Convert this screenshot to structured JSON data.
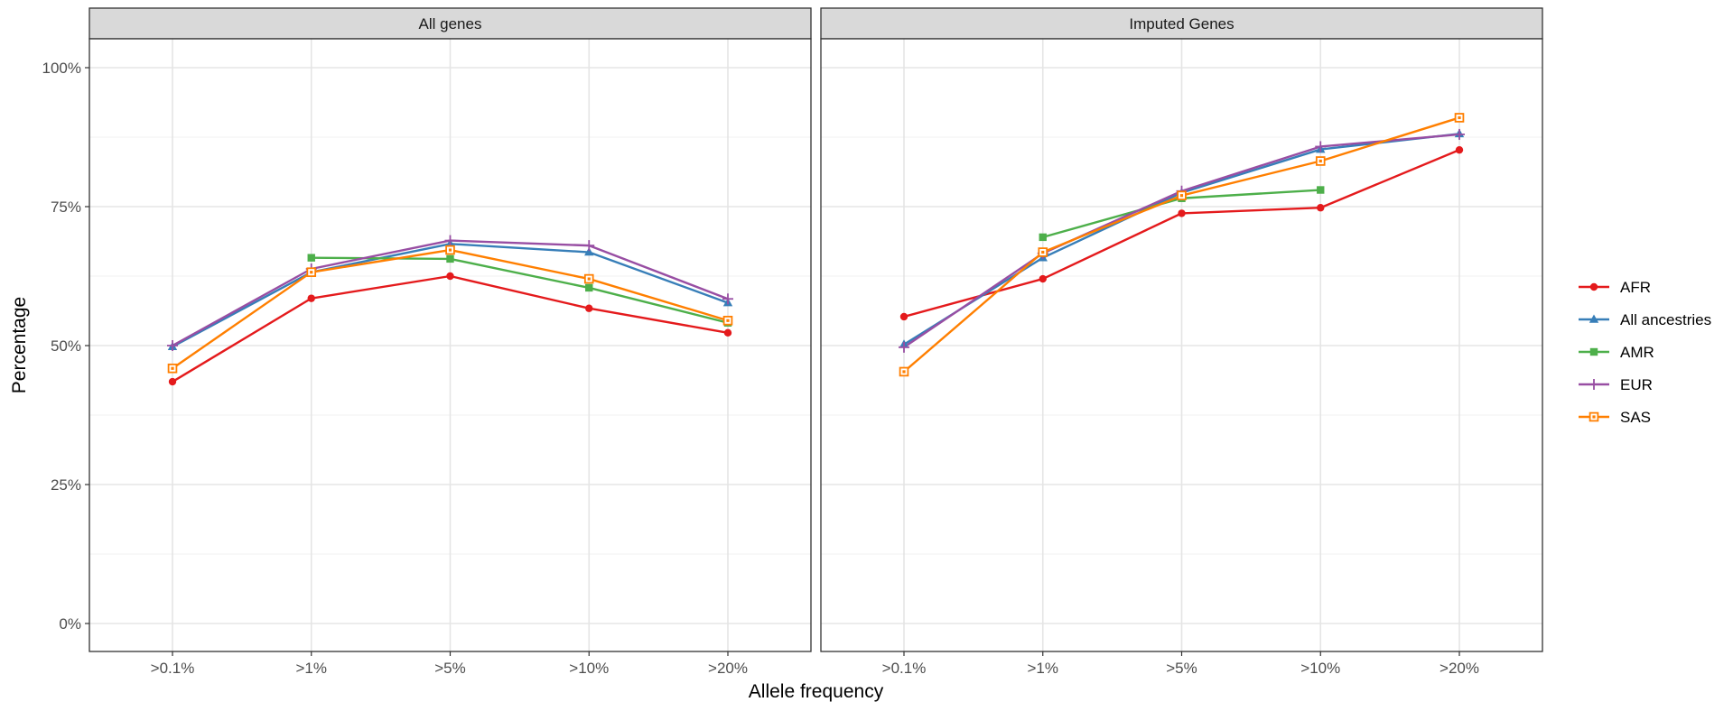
{
  "chart_data": {
    "type": "line",
    "xlabel": "Allele frequency",
    "ylabel": "Percentage",
    "categories": [
      ">0.1%",
      ">1%",
      ">5%",
      ">10%",
      ">20%"
    ],
    "ylim": [
      0,
      1
    ],
    "yticks": [
      0,
      0.25,
      0.5,
      0.75,
      1.0
    ],
    "ytick_labels": [
      "0%",
      "25%",
      "50%",
      "75%",
      "100%"
    ],
    "grid": true,
    "legend_position": "right",
    "series_styles": [
      {
        "name": "AFR",
        "color": "#E41A1C",
        "marker": "circle"
      },
      {
        "name": "All ancestries",
        "color": "#377EB8",
        "marker": "triangle"
      },
      {
        "name": "AMR",
        "color": "#4DAF4A",
        "marker": "square"
      },
      {
        "name": "EUR",
        "color": "#984EA3",
        "marker": "plus"
      },
      {
        "name": "SAS",
        "color": "#FF7F00",
        "marker": "boxed-square"
      }
    ],
    "panels": [
      {
        "title": "All genes",
        "series": [
          {
            "name": "AFR",
            "values": [
              0.435,
              0.585,
              0.625,
              0.567,
              0.523
            ]
          },
          {
            "name": "All ancestries",
            "values": [
              0.498,
              0.632,
              0.683,
              0.668,
              0.577
            ]
          },
          {
            "name": "AMR",
            "values": [
              null,
              0.658,
              0.656,
              0.604,
              0.541
            ]
          },
          {
            "name": "EUR",
            "values": [
              0.5,
              0.638,
              0.689,
              0.68,
              0.584
            ]
          },
          {
            "name": "SAS",
            "values": [
              0.459,
              0.632,
              0.672,
              0.62,
              0.545
            ]
          }
        ]
      },
      {
        "title": "Imputed Genes",
        "series": [
          {
            "name": "AFR",
            "values": [
              0.552,
              0.62,
              0.738,
              0.748,
              0.852
            ]
          },
          {
            "name": "All ancestries",
            "values": [
              0.502,
              0.658,
              0.775,
              0.853,
              0.881
            ]
          },
          {
            "name": "AMR",
            "values": [
              null,
              0.695,
              0.765,
              0.78,
              null
            ]
          },
          {
            "name": "EUR",
            "values": [
              0.497,
              0.666,
              0.778,
              0.858,
              0.88
            ]
          },
          {
            "name": "SAS",
            "values": [
              0.453,
              0.668,
              0.77,
              0.832,
              0.91
            ]
          }
        ]
      }
    ]
  }
}
